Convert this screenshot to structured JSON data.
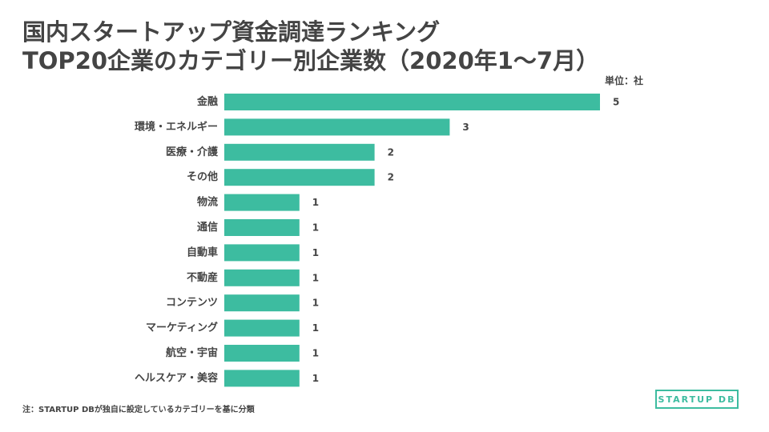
{
  "title_line1": "国内スタートアップ資金調達ランキング",
  "title_line2": "TOP20企業のカテゴリー別企業数（2020年1〜7月）",
  "unit_label": "単位：社",
  "note": "注：STARTUP DBが独自に設定しているカテゴリーを基に分類",
  "logo_text": "STARTUP DB",
  "colors": {
    "bar": "#3dbca0",
    "text": "#444444"
  },
  "chart_data": {
    "type": "bar",
    "orientation": "horizontal",
    "categories": [
      "金融",
      "環境・エネルギー",
      "医療・介護",
      "その他",
      "物流",
      "通信",
      "自動車",
      "不動産",
      "コンテンツ",
      "マーケティング",
      "航空・宇宙",
      "ヘルスケア・美容"
    ],
    "values": [
      5,
      3,
      2,
      2,
      1,
      1,
      1,
      1,
      1,
      1,
      1,
      1
    ],
    "xlim": [
      0,
      5
    ],
    "grid": false,
    "data_labels": true
  }
}
